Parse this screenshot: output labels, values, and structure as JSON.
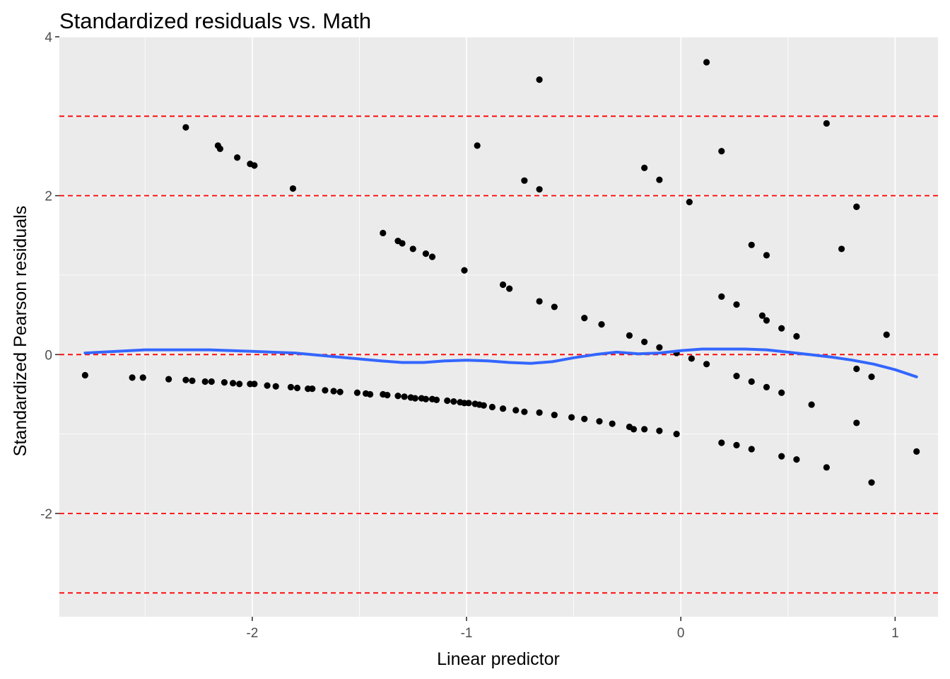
{
  "chart_data": {
    "type": "scatter",
    "title": "Standardized residuals vs. Math",
    "xlabel": "Linear predictor",
    "ylabel": "Standardized Pearson residuals",
    "xlim": [
      -2.9,
      1.2
    ],
    "ylim": [
      -3.3,
      4.0
    ],
    "x_ticks": [
      -2,
      -1,
      0,
      1
    ],
    "x_tick_labels": [
      "-2",
      "-1",
      "0",
      "1"
    ],
    "y_ticks": [
      -2,
      0,
      2,
      4
    ],
    "y_tick_labels": [
      "-2",
      "0",
      "2",
      "4"
    ],
    "grid": true,
    "panel_background": "#ebebeb",
    "grid_color": "#ffffff",
    "point_color": "#000000",
    "reference_lines": {
      "values": [
        -3,
        -2,
        0,
        2,
        3
      ],
      "color": "#ff0000",
      "style": "dashed"
    },
    "smooth": {
      "color": "#3366ff",
      "x": [
        -2.78,
        -2.5,
        -2.2,
        -2.0,
        -1.8,
        -1.6,
        -1.4,
        -1.3,
        -1.2,
        -1.1,
        -1.0,
        -0.9,
        -0.8,
        -0.7,
        -0.6,
        -0.5,
        -0.4,
        -0.3,
        -0.2,
        -0.1,
        0.0,
        0.1,
        0.2,
        0.3,
        0.4,
        0.5,
        0.6,
        0.7,
        0.8,
        0.9,
        1.0,
        1.1
      ],
      "y": [
        0.02,
        0.06,
        0.06,
        0.04,
        0.02,
        -0.03,
        -0.08,
        -0.1,
        -0.1,
        -0.08,
        -0.07,
        -0.08,
        -0.1,
        -0.11,
        -0.09,
        -0.04,
        0.0,
        0.03,
        0.01,
        0.02,
        0.05,
        0.07,
        0.07,
        0.07,
        0.06,
        0.03,
        0.0,
        -0.03,
        -0.07,
        -0.12,
        -0.19,
        -0.28
      ]
    },
    "points": {
      "x": [
        -2.78,
        -2.56,
        -2.51,
        -2.39,
        -2.31,
        -2.28,
        -2.22,
        -2.19,
        -2.13,
        -2.09,
        -2.06,
        -2.01,
        -1.99,
        -1.93,
        -1.89,
        -1.82,
        -1.79,
        -1.74,
        -1.72,
        -1.66,
        -1.62,
        -1.59,
        -1.51,
        -1.47,
        -1.45,
        -1.39,
        -1.37,
        -1.32,
        -1.29,
        -1.26,
        -1.24,
        -1.21,
        -1.19,
        -1.16,
        -1.14,
        -1.09,
        -1.06,
        -1.03,
        -1.01,
        -0.99,
        -0.96,
        -0.94,
        -0.92,
        -0.88,
        -0.83,
        -0.77,
        -0.73,
        -0.66,
        -0.59,
        -0.51,
        -0.45,
        -0.38,
        -0.32,
        -0.24,
        -0.22,
        -0.17,
        -0.1,
        -0.02,
        0.19,
        0.26,
        0.33,
        0.47,
        0.54,
        0.68,
        0.82,
        0.89,
        1.1,
        -2.31,
        -2.16,
        -2.15,
        -2.07,
        -2.01,
        -1.99,
        -1.81,
        -1.39,
        -1.32,
        -1.3,
        -1.25,
        -1.19,
        -1.16,
        -1.01,
        -0.83,
        -0.8,
        -0.66,
        -0.59,
        -0.45,
        -0.37,
        -0.24,
        -0.17,
        -0.1,
        -0.02,
        0.05,
        0.12,
        0.26,
        0.33,
        0.4,
        0.47,
        0.61,
        0.82,
        0.89,
        0.19,
        0.26,
        0.38,
        0.4,
        0.47,
        0.54,
        -0.95,
        -0.73,
        -0.66,
        -0.66,
        -0.17,
        -0.1,
        0.04,
        0.12,
        0.19,
        0.33,
        0.4,
        0.68,
        0.75,
        0.82,
        0.96,
        0.82
      ],
      "y": [
        -0.26,
        -0.29,
        -0.29,
        -0.31,
        -0.32,
        -0.33,
        -0.34,
        -0.34,
        -0.35,
        -0.36,
        -0.37,
        -0.37,
        -0.37,
        -0.39,
        -0.4,
        -0.41,
        -0.42,
        -0.43,
        -0.43,
        -0.45,
        -0.46,
        -0.47,
        -0.48,
        -0.49,
        -0.5,
        -0.5,
        -0.51,
        -0.52,
        -0.53,
        -0.54,
        -0.55,
        -0.55,
        -0.56,
        -0.56,
        -0.57,
        -0.58,
        -0.59,
        -0.6,
        -0.61,
        -0.61,
        -0.62,
        -0.63,
        -0.64,
        -0.66,
        -0.68,
        -0.7,
        -0.72,
        -0.73,
        -0.76,
        -0.79,
        -0.81,
        -0.84,
        -0.87,
        -0.91,
        -0.94,
        -0.94,
        -0.96,
        -1.0,
        -1.11,
        -1.14,
        -1.19,
        -1.28,
        -1.32,
        -1.42,
        -0.86,
        -1.61,
        -1.22,
        2.86,
        2.63,
        2.59,
        2.48,
        2.4,
        2.38,
        2.09,
        1.53,
        1.43,
        1.4,
        1.33,
        1.27,
        1.23,
        1.06,
        0.88,
        0.83,
        0.67,
        0.6,
        0.46,
        0.38,
        0.24,
        0.16,
        0.09,
        0.02,
        -0.05,
        -0.12,
        -0.27,
        -0.34,
        -0.41,
        -0.48,
        -0.63,
        -0.18,
        -0.28,
        0.73,
        0.63,
        0.49,
        0.43,
        0.33,
        0.23,
        2.63,
        2.19,
        3.46,
        2.08,
        2.35,
        2.2,
        1.92,
        3.68,
        2.56,
        1.38,
        1.25,
        2.91,
        1.33,
        1.86,
        0.25,
        1.86
      ]
    }
  }
}
